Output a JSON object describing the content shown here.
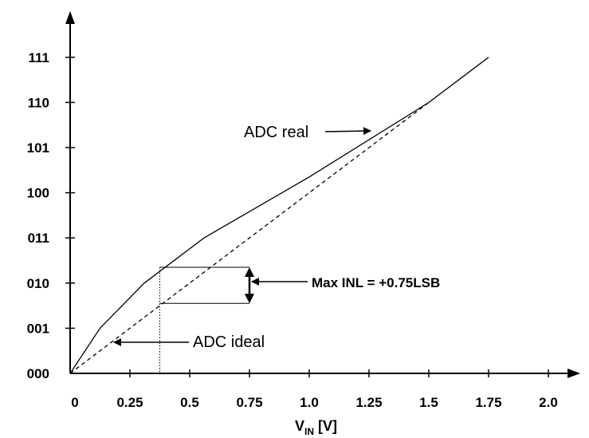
{
  "chart_data": {
    "type": "line",
    "title": "",
    "xlabel": {
      "main": "V",
      "sub": "IN",
      "unit": " [V]"
    },
    "ylabel": "",
    "x_ticks": [
      "0",
      "0.25",
      "0.5",
      "0.75",
      "1.0",
      "1.25",
      "1.5",
      "1.75",
      "2.0"
    ],
    "x_tick_values": [
      0,
      0.25,
      0.5,
      0.75,
      1.0,
      1.25,
      1.5,
      1.75,
      2.0
    ],
    "y_ticks": [
      "000",
      "001",
      "010",
      "011",
      "100",
      "101",
      "110",
      "111"
    ],
    "y_tick_values": [
      0,
      1,
      2,
      3,
      4,
      5,
      6,
      7
    ],
    "xlim": [
      0,
      2.1
    ],
    "ylim": [
      0,
      7.0
    ],
    "grid": false,
    "series": [
      {
        "name": "ADC real",
        "style": "solid",
        "x": [
          0,
          0.125,
          0.31,
          0.56,
          1.0,
          1.5,
          1.75
        ],
        "y": [
          0,
          1.0,
          2.0,
          3.0,
          4.35,
          6.0,
          7.0
        ]
      },
      {
        "name": "ADC ideal",
        "style": "dashed",
        "x": [
          0,
          1.5
        ],
        "y": [
          0,
          6.0
        ]
      }
    ],
    "annotations": {
      "real_label": "ADC real",
      "ideal_label": "ADC ideal",
      "inl_label": "Max INL = +0.75LSB",
      "inl_x": 0.375,
      "inl_box_x_end": 0.75,
      "inl_y_top": 2.35,
      "inl_y_bottom": 1.55
    }
  }
}
